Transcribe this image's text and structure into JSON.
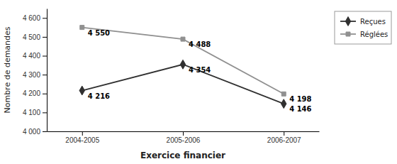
{
  "chart_data": {
    "type": "line",
    "xlabel": "Exercice financier",
    "ylabel": "Nombre de demandes",
    "categories": [
      "2004-2005",
      "2005-2006",
      "2006-2007"
    ],
    "series": [
      {
        "name": "Reçues",
        "color": "#303030",
        "marker": "diamond",
        "values": [
          4216,
          4354,
          4146
        ],
        "value_labels": [
          "4 216",
          "4 354",
          "4 146"
        ]
      },
      {
        "name": "Réglées",
        "color": "#909090",
        "marker": "square",
        "values": [
          4550,
          4488,
          4198
        ],
        "value_labels": [
          "4 550",
          "4 488",
          "4 198"
        ]
      }
    ],
    "ylim": [
      4000,
      4650
    ],
    "yticks": [
      {
        "value": 4000,
        "label": "4 000"
      },
      {
        "value": 4100,
        "label": "4 100"
      },
      {
        "value": 4200,
        "label": "4 200"
      },
      {
        "value": 4300,
        "label": "4 300"
      },
      {
        "value": 4400,
        "label": "4 400"
      },
      {
        "value": 4500,
        "label": "4 500"
      },
      {
        "value": 4600,
        "label": "4 600"
      }
    ],
    "data_labels": true,
    "legend": "right",
    "grid": false
  }
}
